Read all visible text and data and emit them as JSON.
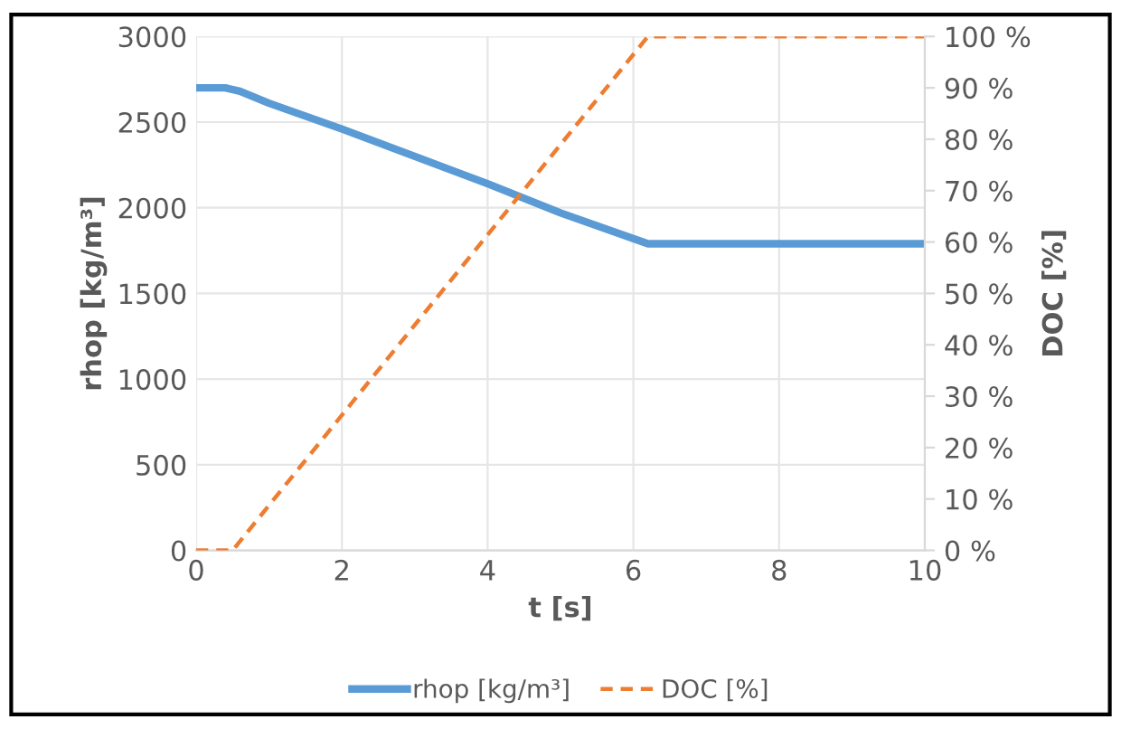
{
  "chart_data": {
    "type": "line",
    "xlabel": "t [s]",
    "ylabel": "rhop [kg/m³]",
    "y2label": "DOC [%]",
    "xlim": [
      0,
      10
    ],
    "xticks": [
      0,
      2,
      4,
      6,
      8,
      10
    ],
    "ylim": [
      0,
      3000
    ],
    "yticks": [
      0,
      500,
      1000,
      1500,
      2000,
      2500,
      3000
    ],
    "y2lim": [
      0,
      100
    ],
    "y2ticks": [
      {
        "value": 0,
        "label": "0 %"
      },
      {
        "value": 10,
        "label": "10 %"
      },
      {
        "value": 20,
        "label": "20 %"
      },
      {
        "value": 30,
        "label": "30 %"
      },
      {
        "value": 40,
        "label": "40 %"
      },
      {
        "value": 50,
        "label": "50 %"
      },
      {
        "value": 60,
        "label": "60 %"
      },
      {
        "value": 70,
        "label": "70 %"
      },
      {
        "value": 80,
        "label": "80 %"
      },
      {
        "value": 90,
        "label": "90 %"
      },
      {
        "value": 100,
        "label": "100 %"
      }
    ],
    "grid": true,
    "legend": "bottom",
    "series": [
      {
        "name": "rhop [kg/m³]",
        "color": "#5b9bd5",
        "line_style": "solid",
        "x": [
          0,
          0.4,
          0.6,
          1,
          2,
          3,
          4,
          5,
          6.2,
          10
        ],
        "values": [
          2700,
          2700,
          2680,
          2610,
          2460,
          2300,
          2140,
          1970,
          1790,
          1790
        ]
      },
      {
        "name": "DOC [%]",
        "color": "#ed7d31",
        "line_style": "dashed",
        "axis": "y2",
        "x": [
          0,
          0.5,
          6.2,
          10
        ],
        "values": [
          0,
          0,
          100,
          100
        ]
      }
    ]
  }
}
